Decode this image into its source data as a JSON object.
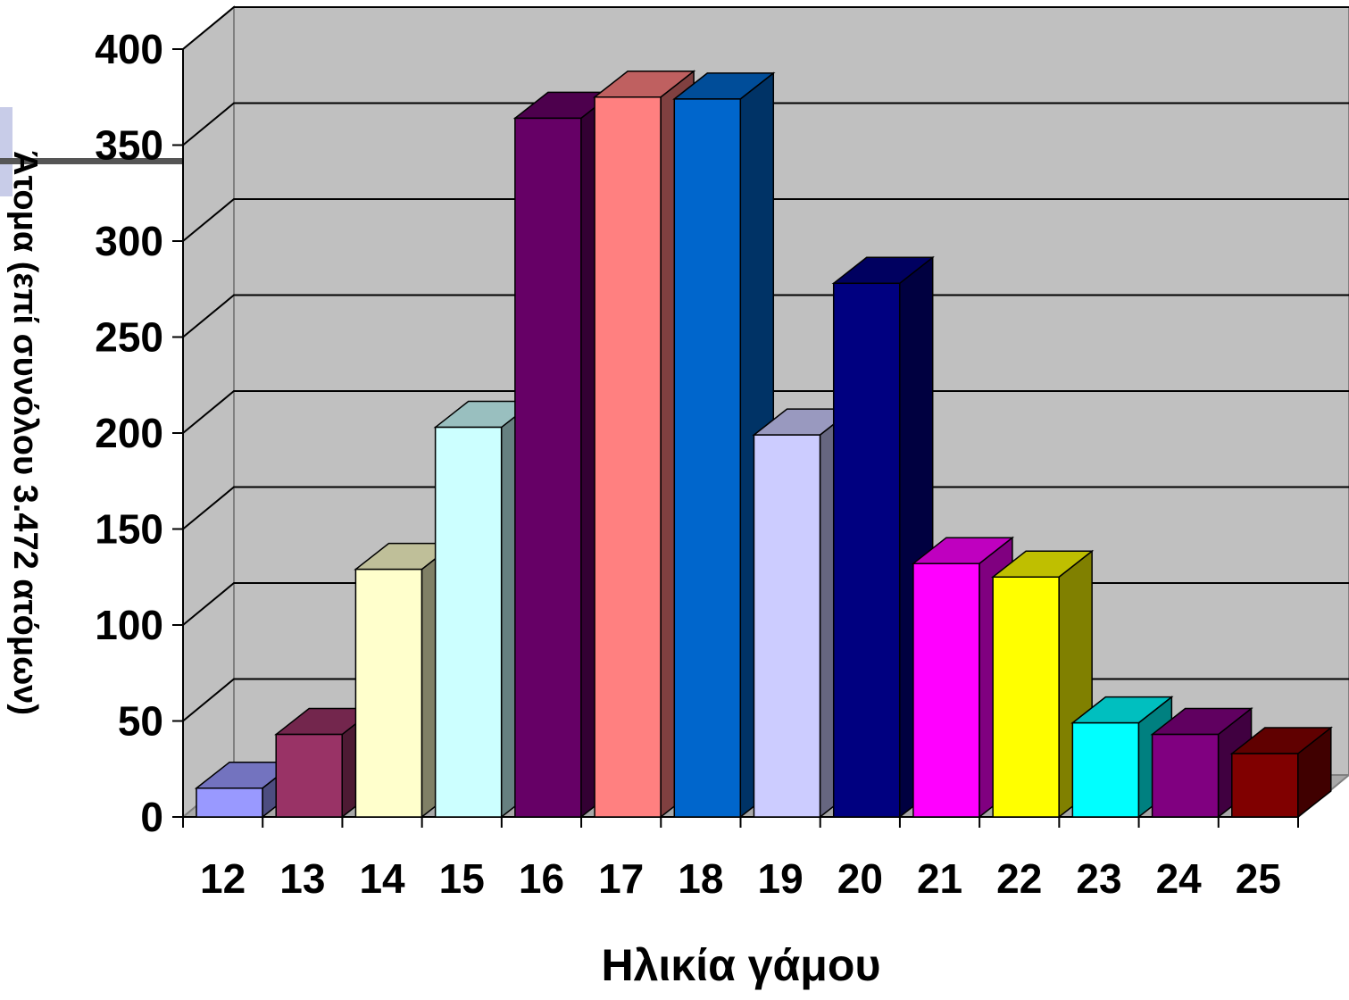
{
  "chart_data": {
    "type": "bar",
    "categories": [
      "12",
      "13",
      "14",
      "15",
      "16",
      "17",
      "18",
      "19",
      "20",
      "21",
      "22",
      "23",
      "24",
      "25"
    ],
    "values": [
      15,
      43,
      129,
      203,
      364,
      375,
      374,
      199,
      278,
      132,
      125,
      49,
      43,
      33
    ],
    "colors": [
      "#9999ff",
      "#993366",
      "#ffffcc",
      "#ccffff",
      "#660066",
      "#ff8080",
      "#0066cc",
      "#ccccff",
      "#000080",
      "#ff00ff",
      "#ffff00",
      "#00ffff",
      "#800080",
      "#800000"
    ],
    "xlabel": "Ηλικία γάμου",
    "ylabel": "Άτομα (επί συνόλου 3.472 ατόμων)",
    "ylim": [
      0,
      400
    ],
    "yticks": [
      "0",
      "50",
      "100",
      "150",
      "200",
      "250",
      "300",
      "350",
      "400"
    ],
    "grid": true,
    "style": "3d-column",
    "wall_color": "#c0c0c0"
  }
}
